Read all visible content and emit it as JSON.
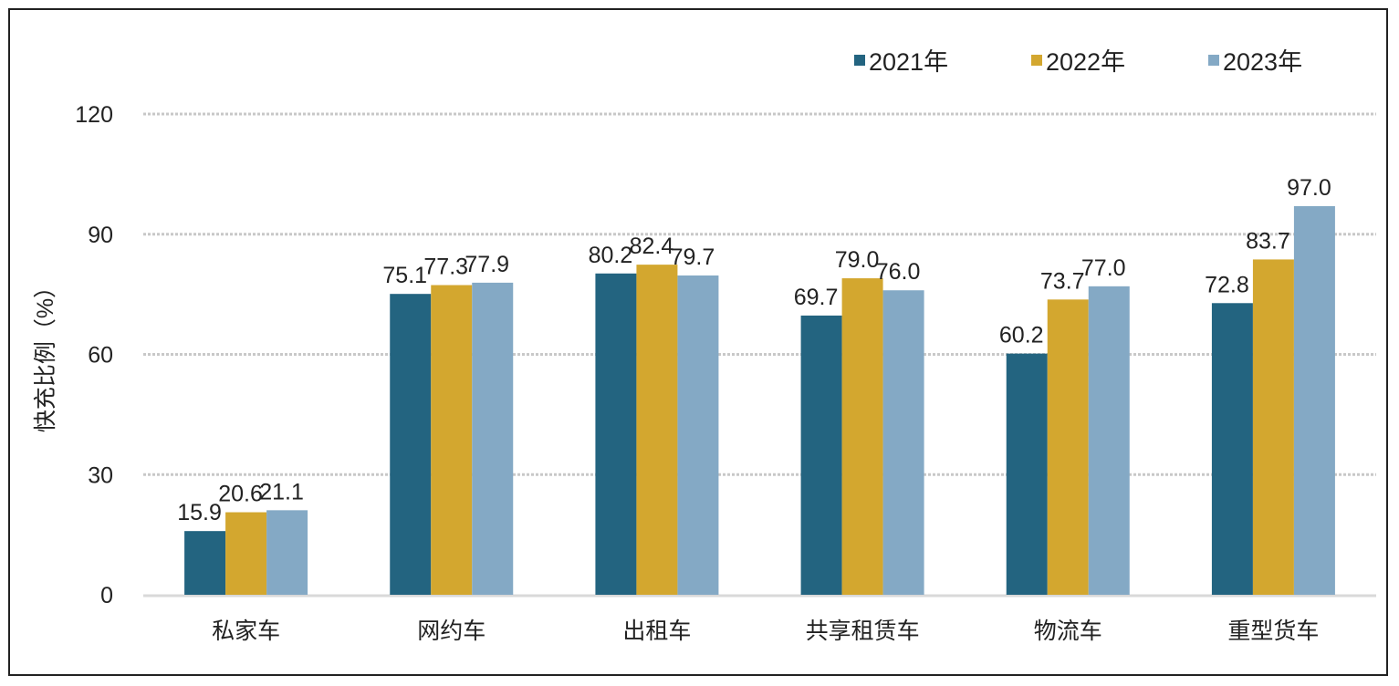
{
  "chart_data": {
    "type": "bar",
    "title": "",
    "xlabel": "",
    "ylabel": "快充比例（%）",
    "ylim": [
      0,
      120
    ],
    "yticks": [
      0,
      30,
      60,
      90,
      120
    ],
    "grid": true,
    "legend_position": "top-right",
    "categories": [
      "私家车",
      "网约车",
      "出租车",
      "共享租赁车",
      "物流车",
      "重型货车"
    ],
    "series": [
      {
        "name": "2021年",
        "color": "#236480",
        "values": [
          15.9,
          75.1,
          80.2,
          69.7,
          60.2,
          72.8
        ]
      },
      {
        "name": "2022年",
        "color": "#d3a72f",
        "values": [
          20.6,
          77.3,
          82.4,
          79.0,
          73.7,
          83.7
        ]
      },
      {
        "name": "2023年",
        "color": "#84a9c5",
        "values": [
          21.1,
          77.9,
          79.7,
          76.0,
          77.0,
          97.0
        ]
      }
    ]
  }
}
